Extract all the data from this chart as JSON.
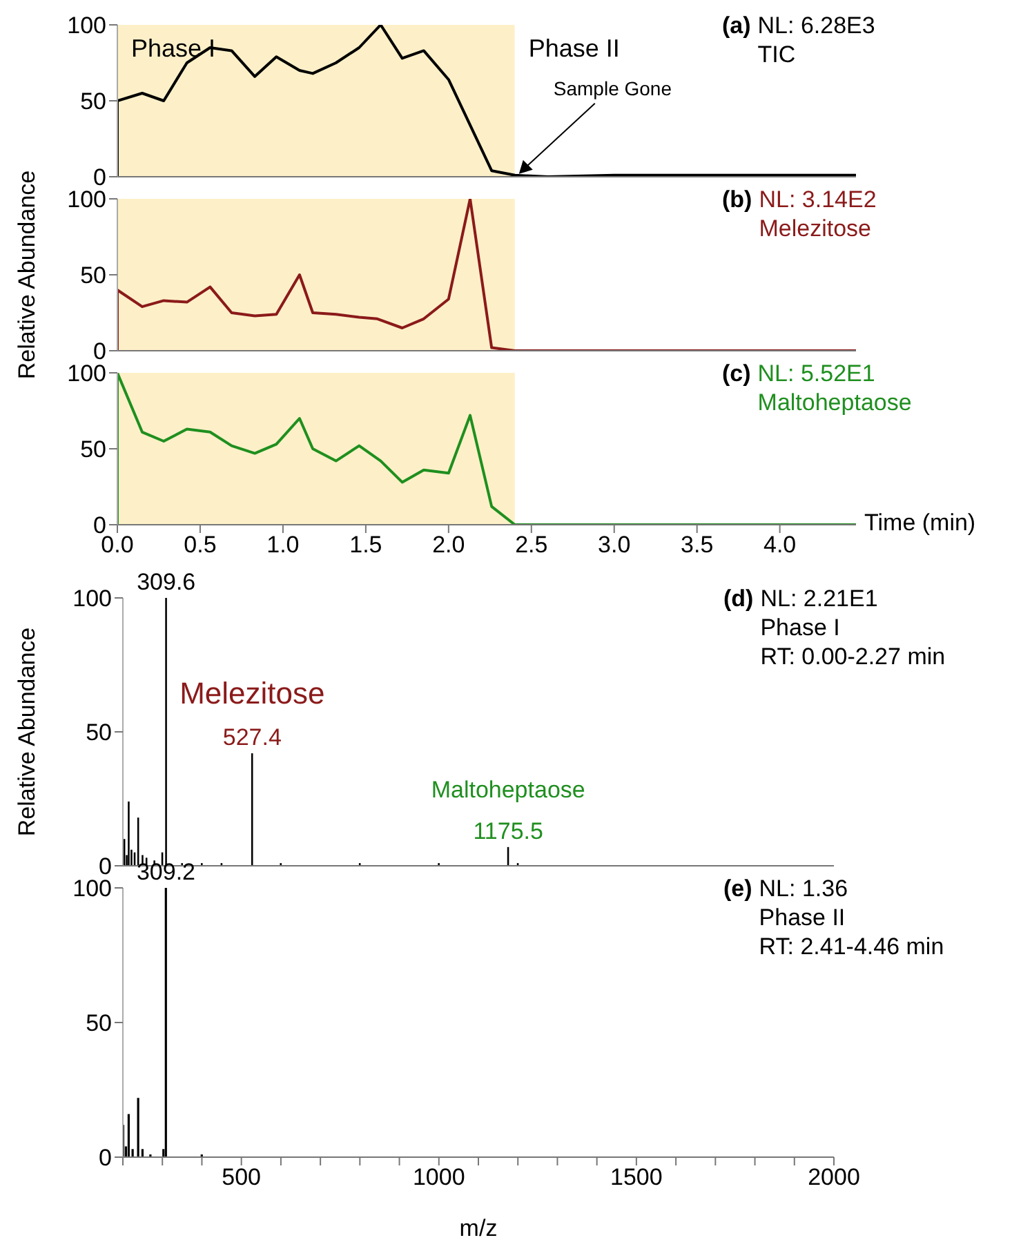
{
  "chart_data": [
    {
      "type": "line",
      "xlim": [
        0,
        4.46
      ],
      "ylim": [
        0,
        100
      ],
      "yticks": [
        0,
        50,
        100
      ],
      "tick_labels": "y",
      "series": [
        {
          "color": "#000000",
          "x": [
            0,
            0,
            0.15,
            0.28,
            0.42,
            0.56,
            0.69,
            0.83,
            0.96,
            1.1,
            1.18,
            1.32,
            1.46,
            1.59,
            1.72,
            1.85,
            2.0,
            2.26,
            2.4,
            2.6,
            3.0,
            3.5,
            4.0,
            4.3,
            4.46
          ],
          "values": [
            0,
            50,
            55,
            50,
            75,
            85,
            83,
            66,
            79,
            70,
            68,
            75,
            85,
            100,
            78,
            83,
            64,
            4,
            1,
            0,
            1,
            1,
            1,
            1,
            1
          ]
        }
      ],
      "bands": [
        {
          "axis": "x",
          "from": 0,
          "to": 2.4,
          "label": "Phase I",
          "color": "#fdf0c8"
        },
        {
          "axis": "x",
          "from": 2.4,
          "to": 4.46,
          "label": "Phase II",
          "color": "#ffffff"
        }
      ],
      "annotations": [
        "(a)",
        "NL: 6.28E3",
        "TIC",
        {
          "text": "Sample Gone",
          "x": 2.4,
          "y": 1
        }
      ]
    },
    {
      "type": "line",
      "xlim": [
        0,
        4.46
      ],
      "ylim": [
        0,
        100
      ],
      "yticks": [
        0,
        50,
        100
      ],
      "tick_labels": "y",
      "ylabel": "Relative Abundance",
      "series": [
        {
          "color": "#8b1a1a",
          "x": [
            0,
            0,
            0.15,
            0.28,
            0.42,
            0.56,
            0.69,
            0.83,
            0.96,
            1.1,
            1.18,
            1.32,
            1.46,
            1.57,
            1.72,
            1.85,
            2.0,
            2.13,
            2.26,
            2.4,
            4.46
          ],
          "values": [
            0,
            40,
            29,
            33,
            32,
            42,
            25,
            23,
            24,
            50,
            25,
            24,
            22,
            21,
            15,
            21,
            34,
            100,
            2,
            0,
            0
          ]
        }
      ],
      "bands": [
        {
          "axis": "x",
          "from": 0,
          "to": 2.4,
          "color": "#fdf0c8"
        }
      ],
      "annotations": [
        "(b)",
        "NL: 3.14E2",
        "Melezitose"
      ]
    },
    {
      "type": "line",
      "xlim": [
        0,
        4.46
      ],
      "ylim": [
        0,
        100
      ],
      "yticks": [
        0,
        50,
        100
      ],
      "xlabel": "Time (min)",
      "xticks": [
        {
          "value": 0,
          "label": "0.0"
        },
        {
          "value": 0.5,
          "label": "0.5"
        },
        {
          "value": 1,
          "label": "1.0"
        },
        {
          "value": 1.5,
          "label": "1.5"
        },
        {
          "value": 2,
          "label": "2.0"
        },
        {
          "value": 2.5,
          "label": "2.5"
        },
        {
          "value": 3,
          "label": "3.0"
        },
        {
          "value": 3.5,
          "label": "3.5"
        },
        {
          "value": 4,
          "label": "4.0"
        }
      ],
      "series": [
        {
          "color": "#1f8f1f",
          "x": [
            0,
            0,
            0.15,
            0.28,
            0.42,
            0.56,
            0.69,
            0.83,
            0.96,
            1.1,
            1.18,
            1.32,
            1.46,
            1.59,
            1.72,
            1.85,
            2.0,
            2.13,
            2.26,
            2.4,
            4.46
          ],
          "values": [
            0,
            100,
            61,
            55,
            63,
            61,
            52,
            47,
            53,
            70,
            50,
            42,
            52,
            42,
            28,
            36,
            34,
            72,
            12,
            0,
            0
          ]
        }
      ],
      "bands": [
        {
          "axis": "x",
          "from": 0,
          "to": 2.4,
          "color": "#fdf0c8"
        }
      ],
      "annotations": [
        "(c)",
        "NL: 5.52E1",
        "Maltoheptaose"
      ]
    },
    {
      "type": "bar",
      "xlim": [
        200,
        2000
      ],
      "ylim": [
        0,
        100
      ],
      "yticks": [
        0,
        50,
        100
      ],
      "tick_labels": "y",
      "ylabel": "Relative Abundance",
      "series": [
        {
          "color": "#000000",
          "x": [
            204,
            210,
            215,
            222,
            230,
            239,
            250,
            260,
            280,
            300,
            309.6,
            350,
            400,
            450,
            527.4,
            600,
            800,
            1000,
            1175.5,
            1200
          ],
          "values": [
            10,
            4,
            24,
            6,
            5,
            18,
            4,
            3,
            2,
            5,
            100,
            1,
            1,
            1,
            42,
            1,
            1,
            1,
            7,
            1
          ]
        }
      ],
      "annotations": [
        "(d)",
        "NL: 2.21E1",
        "Phase I",
        "RT: 0.00-2.27 min",
        {
          "text": "309.6",
          "x": 309.6,
          "y": 100
        },
        {
          "text": "527.4",
          "x": 527.4,
          "y": 42
        },
        {
          "text": "Melezitose",
          "x": 527.4,
          "y": 42
        },
        {
          "text": "1175.5",
          "x": 1175.5,
          "y": 7
        },
        {
          "text": "Maltoheptaose",
          "x": 1175.5,
          "y": 7
        }
      ]
    },
    {
      "type": "bar",
      "xlim": [
        200,
        2000
      ],
      "ylim": [
        0,
        100
      ],
      "yticks": [
        0,
        50,
        100
      ],
      "xlabel": "m/z",
      "xticks": [
        {
          "value": 200,
          "label": null
        },
        {
          "value": 300,
          "label": null
        },
        {
          "value": 400,
          "label": null
        },
        500,
        {
          "value": 600,
          "label": null
        },
        {
          "value": 700,
          "label": null
        },
        {
          "value": 800,
          "label": null
        },
        {
          "value": 900,
          "label": null
        },
        1000,
        {
          "value": 1100,
          "label": null
        },
        {
          "value": 1200,
          "label": null
        },
        {
          "value": 1300,
          "label": null
        },
        {
          "value": 1400,
          "label": null
        },
        1500,
        {
          "value": 1600,
          "label": null
        },
        {
          "value": 1700,
          "label": null
        },
        {
          "value": 1800,
          "label": null
        },
        {
          "value": 1900,
          "label": null
        },
        2000
      ],
      "series": [
        {
          "color": "#000000",
          "x": [
            201,
            208,
            215,
            225,
            239,
            250,
            270,
            303,
            309.2,
            400
          ],
          "values": [
            12,
            4,
            16,
            3,
            22,
            3,
            1,
            3,
            100,
            1
          ]
        }
      ],
      "annotations": [
        "(e)",
        "NL: 1.36",
        "Phase II",
        "RT: 2.41-4.46 min",
        {
          "text": "309.2",
          "x": 309.2,
          "y": 100
        }
      ]
    }
  ]
}
